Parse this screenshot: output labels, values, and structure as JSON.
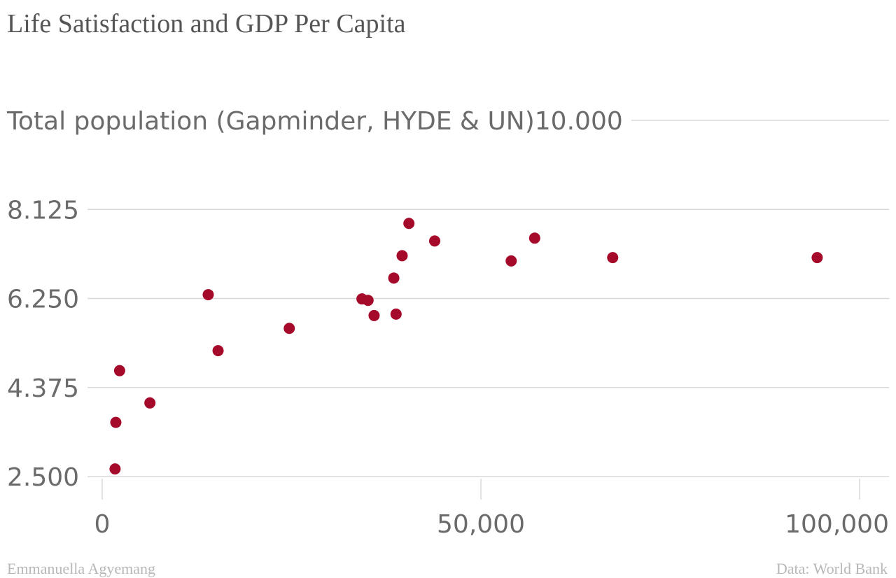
{
  "chart_data": {
    "type": "scatter",
    "title": "Life Satisfaction and GDP Per Capita",
    "ylabel": "Total population (Gapminder, HYDE & UN)",
    "xlabel": "",
    "xlim": [
      0,
      100000
    ],
    "ylim": [
      2.5,
      10
    ],
    "x_ticks": [
      {
        "value": 0,
        "label": "0"
      },
      {
        "value": 50000,
        "label": "50,000"
      },
      {
        "value": 100000,
        "label": "100,000"
      }
    ],
    "y_ticks": [
      {
        "value": 2.5,
        "label": "2.500"
      },
      {
        "value": 4.375,
        "label": "4.375"
      },
      {
        "value": 6.25,
        "label": "6.250"
      },
      {
        "value": 8.125,
        "label": "8.125"
      },
      {
        "value": 10,
        "label": "10.000"
      }
    ],
    "grid": true,
    "color": "#a50a2a",
    "points": [
      {
        "x": 1700,
        "y": 2.66
      },
      {
        "x": 1800,
        "y": 3.64
      },
      {
        "x": 2300,
        "y": 4.73
      },
      {
        "x": 6300,
        "y": 4.05
      },
      {
        "x": 14000,
        "y": 6.33
      },
      {
        "x": 15300,
        "y": 5.15
      },
      {
        "x": 24700,
        "y": 5.62
      },
      {
        "x": 34300,
        "y": 6.24
      },
      {
        "x": 35100,
        "y": 6.21
      },
      {
        "x": 35900,
        "y": 5.89
      },
      {
        "x": 38500,
        "y": 6.68
      },
      {
        "x": 38800,
        "y": 5.92
      },
      {
        "x": 39600,
        "y": 7.15
      },
      {
        "x": 40500,
        "y": 7.83
      },
      {
        "x": 43900,
        "y": 7.46
      },
      {
        "x": 54000,
        "y": 7.04
      },
      {
        "x": 57100,
        "y": 7.52
      },
      {
        "x": 67400,
        "y": 7.11
      },
      {
        "x": 94400,
        "y": 7.11
      }
    ]
  },
  "footer": {
    "author": "Emmanuella Agyemang",
    "source": "Data: World Bank"
  }
}
